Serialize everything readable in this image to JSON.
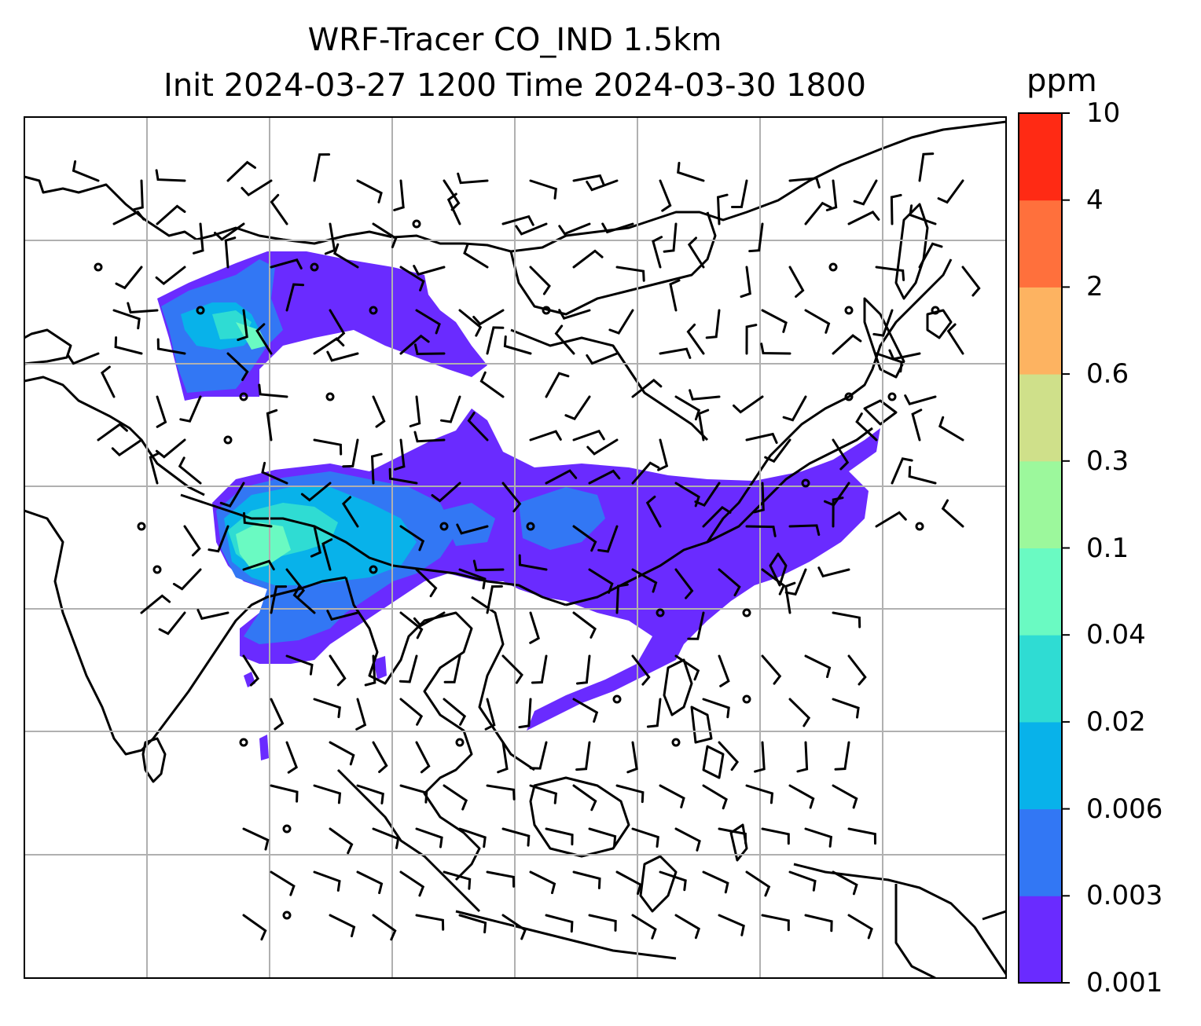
{
  "title": {
    "line1": "WRF-Tracer CO_IND 1.5km",
    "line2": "Init 2024-03-27 1200 Time 2024-03-30 1800"
  },
  "colorbar": {
    "unit_label": "ppm",
    "ticks": [
      "0.001",
      "0.003",
      "0.006",
      "0.02",
      "0.04",
      "0.1",
      "0.3",
      "0.6",
      "2",
      "4",
      "10"
    ],
    "colors": [
      "#6a2bff",
      "#3277f4",
      "#08b2ea",
      "#2fdcd3",
      "#6afac2",
      "#9cf89c",
      "#cfe08a",
      "#fdb361",
      "#ff703c",
      "#ff2a14"
    ]
  },
  "map": {
    "gridlines": true,
    "features": [
      "coastlines",
      "country-borders",
      "wind-barbs",
      "calm-wind-circles",
      "tracer-concentration-field"
    ]
  }
}
